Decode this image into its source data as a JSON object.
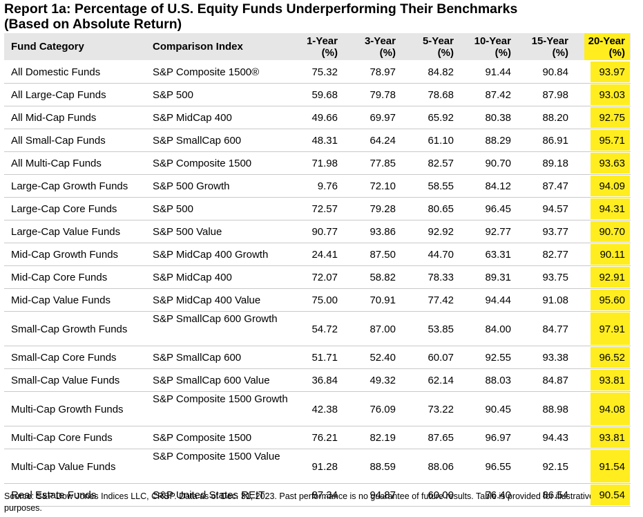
{
  "title_line1": "Report 1a: Percentage of U.S. Equity Funds Underperforming Their Benchmarks",
  "title_line2": "(Based on Absolute Return)",
  "headers": {
    "category": "Fund Category",
    "index": "Comparison Index",
    "y1": [
      "1-Year",
      "(%)"
    ],
    "y3": [
      "3-Year",
      "(%)"
    ],
    "y5": [
      "5-Year",
      "(%)"
    ],
    "y10": [
      "10-Year",
      "(%)"
    ],
    "y15": [
      "15-Year",
      "(%)"
    ],
    "y20": [
      "20-Year",
      "(%)"
    ]
  },
  "highlight_color": "#ffed1f",
  "rows": [
    {
      "category": "All Domestic Funds",
      "index": "S&P Composite 1500®",
      "v": [
        "75.32",
        "78.97",
        "84.82",
        "91.44",
        "90.84",
        "93.97"
      ]
    },
    {
      "category": "All Large-Cap Funds",
      "index": "S&P 500",
      "v": [
        "59.68",
        "79.78",
        "78.68",
        "87.42",
        "87.98",
        "93.03"
      ]
    },
    {
      "category": "All Mid-Cap Funds",
      "index": "S&P MidCap 400",
      "v": [
        "49.66",
        "69.97",
        "65.92",
        "80.38",
        "88.20",
        "92.75"
      ]
    },
    {
      "category": "All Small-Cap Funds",
      "index": "S&P SmallCap 600",
      "v": [
        "48.31",
        "64.24",
        "61.10",
        "88.29",
        "86.91",
        "95.71"
      ]
    },
    {
      "category": "All Multi-Cap Funds",
      "index": "S&P Composite 1500",
      "v": [
        "71.98",
        "77.85",
        "82.57",
        "90.70",
        "89.18",
        "93.63"
      ]
    },
    {
      "category": "Large-Cap Growth Funds",
      "index": "S&P 500 Growth",
      "v": [
        "9.76",
        "72.10",
        "58.55",
        "84.12",
        "87.47",
        "94.09"
      ]
    },
    {
      "category": "Large-Cap Core Funds",
      "index": "S&P 500",
      "v": [
        "72.57",
        "79.28",
        "80.65",
        "96.45",
        "94.57",
        "94.31"
      ]
    },
    {
      "category": "Large-Cap Value Funds",
      "index": "S&P 500 Value",
      "v": [
        "90.77",
        "93.86",
        "92.92",
        "92.77",
        "93.77",
        "90.70"
      ]
    },
    {
      "category": "Mid-Cap Growth Funds",
      "index": "S&P MidCap 400 Growth",
      "v": [
        "24.41",
        "87.50",
        "44.70",
        "63.31",
        "82.77",
        "90.11"
      ]
    },
    {
      "category": "Mid-Cap Core Funds",
      "index": "S&P MidCap 400",
      "v": [
        "72.07",
        "58.82",
        "78.33",
        "89.31",
        "93.75",
        "92.91"
      ]
    },
    {
      "category": "Mid-Cap Value Funds",
      "index": "S&P MidCap 400 Value",
      "v": [
        "75.00",
        "70.91",
        "77.42",
        "94.44",
        "91.08",
        "95.60"
      ]
    },
    {
      "category": "Small-Cap Growth Funds",
      "index": "S&P SmallCap 600 Growth",
      "v": [
        "54.72",
        "87.00",
        "53.85",
        "84.00",
        "84.77",
        "97.91"
      ]
    },
    {
      "category": "Small-Cap Core Funds",
      "index": "S&P SmallCap 600",
      "v": [
        "51.71",
        "52.40",
        "60.07",
        "92.55",
        "93.38",
        "96.52"
      ]
    },
    {
      "category": "Small-Cap Value Funds",
      "index": "S&P SmallCap 600 Value",
      "v": [
        "36.84",
        "49.32",
        "62.14",
        "88.03",
        "84.87",
        "93.81"
      ]
    },
    {
      "category": "Multi-Cap Growth Funds",
      "index": "S&P Composite 1500 Growth",
      "v": [
        "42.38",
        "76.09",
        "73.22",
        "90.45",
        "88.98",
        "94.08"
      ]
    },
    {
      "category": "Multi-Cap Core Funds",
      "index": "S&P Composite 1500",
      "v": [
        "76.21",
        "82.19",
        "87.65",
        "96.97",
        "94.43",
        "93.81"
      ]
    },
    {
      "category": "Multi-Cap Value Funds",
      "index": "S&P Composite 1500 Value",
      "v": [
        "91.28",
        "88.59",
        "88.06",
        "96.55",
        "92.15",
        "91.54"
      ]
    },
    {
      "category": "Real Estate Funds",
      "index": "S&P United States REIT",
      "v": [
        "87.34",
        "94.87",
        "60.00",
        "76.40",
        "86.54",
        "90.54"
      ]
    }
  ],
  "source": "Source: S&P Dow Jones Indices LLC, CRSP.  Data as of Dec. 31, 2023.  Past performance is no guarantee of future results.  Table is provided for illustrative purposes."
}
